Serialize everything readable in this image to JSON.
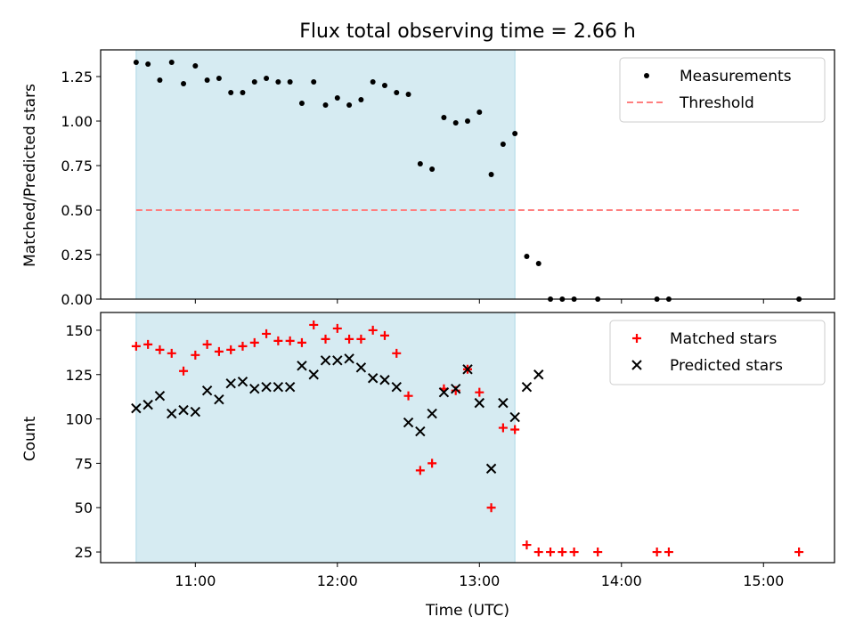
{
  "title": "Flux total observing time = 2.66 h",
  "colors": {
    "shade": "#add8e6",
    "threshold": "#ff7f7f",
    "measurement": "#000000",
    "matched": "#ff0000",
    "predicted": "#000000"
  },
  "chart_data": [
    {
      "type": "scatter",
      "ylabel": "Matched/Predicted stars",
      "xlim": [
        "10:20",
        "15:30"
      ],
      "ylim": [
        0,
        1.4
      ],
      "yticks": [
        "0.00",
        "0.25",
        "0.50",
        "0.75",
        "1.00",
        "1.25"
      ],
      "legend_position": "top-right",
      "shaded_span": [
        "10:35",
        "13:15"
      ],
      "threshold": {
        "label": "Threshold",
        "value": 0.5,
        "x": [
          "10:35",
          "15:15"
        ]
      },
      "series": [
        {
          "name": "Measurements",
          "marker": "dot",
          "x": [
            "10:35",
            "10:40",
            "10:45",
            "10:50",
            "10:55",
            "11:00",
            "11:05",
            "11:10",
            "11:15",
            "11:20",
            "11:25",
            "11:30",
            "11:35",
            "11:40",
            "11:45",
            "11:50",
            "11:55",
            "12:00",
            "12:05",
            "12:10",
            "12:15",
            "12:20",
            "12:25",
            "12:30",
            "12:35",
            "12:40",
            "12:45",
            "12:50",
            "12:55",
            "13:00",
            "13:05",
            "13:10",
            "13:15",
            "13:20",
            "13:25",
            "13:30",
            "13:35",
            "13:40",
            "13:50",
            "14:15",
            "14:20",
            "15:15"
          ],
          "y": [
            1.33,
            1.32,
            1.23,
            1.33,
            1.21,
            1.31,
            1.23,
            1.24,
            1.16,
            1.16,
            1.22,
            1.24,
            1.22,
            1.22,
            1.1,
            1.22,
            1.09,
            1.13,
            1.09,
            1.12,
            1.22,
            1.2,
            1.16,
            1.15,
            0.76,
            0.73,
            1.02,
            0.99,
            1.0,
            1.05,
            0.7,
            0.87,
            0.93,
            0.24,
            0.2,
            0,
            0,
            0,
            0,
            0,
            0,
            0
          ]
        }
      ]
    },
    {
      "type": "scatter",
      "xlabel": "Time (UTC)",
      "ylabel": "Count",
      "xlim": [
        "10:20",
        "15:30"
      ],
      "ylim": [
        19,
        160
      ],
      "yticks": [
        "25",
        "50",
        "75",
        "100",
        "125",
        "150"
      ],
      "xticks": [
        "11:00",
        "12:00",
        "13:00",
        "14:00",
        "15:00"
      ],
      "legend_position": "top-right",
      "shaded_span": [
        "10:35",
        "13:15"
      ],
      "series": [
        {
          "name": "Matched stars",
          "marker": "plus",
          "x": [
            "10:35",
            "10:40",
            "10:45",
            "10:50",
            "10:55",
            "11:00",
            "11:05",
            "11:10",
            "11:15",
            "11:20",
            "11:25",
            "11:30",
            "11:35",
            "11:40",
            "11:45",
            "11:50",
            "11:55",
            "12:00",
            "12:05",
            "12:10",
            "12:15",
            "12:20",
            "12:25",
            "12:30",
            "12:35",
            "12:40",
            "12:45",
            "12:50",
            "12:55",
            "13:00",
            "13:05",
            "13:10",
            "13:15",
            "13:20",
            "13:25",
            "13:30",
            "13:35",
            "13:40",
            "13:50",
            "14:15",
            "14:20",
            "15:15"
          ],
          "y": [
            141,
            142,
            139,
            137,
            127,
            136,
            142,
            138,
            139,
            141,
            143,
            148,
            144,
            144,
            143,
            153,
            145,
            151,
            145,
            145,
            150,
            147,
            137,
            113,
            71,
            75,
            117,
            116,
            128,
            115,
            50,
            95,
            94,
            29,
            25,
            25,
            25,
            25,
            25,
            25,
            25,
            25
          ]
        },
        {
          "name": "Predicted stars",
          "marker": "x",
          "x": [
            "10:35",
            "10:40",
            "10:45",
            "10:50",
            "10:55",
            "11:00",
            "11:05",
            "11:10",
            "11:15",
            "11:20",
            "11:25",
            "11:30",
            "11:35",
            "11:40",
            "11:45",
            "11:50",
            "11:55",
            "12:00",
            "12:05",
            "12:10",
            "12:15",
            "12:20",
            "12:25",
            "12:30",
            "12:35",
            "12:40",
            "12:45",
            "12:50",
            "12:55",
            "13:00",
            "13:05",
            "13:10",
            "13:15",
            "13:20",
            "13:25"
          ],
          "y": [
            106,
            108,
            113,
            103,
            105,
            104,
            116,
            111,
            120,
            121,
            117,
            118,
            118,
            118,
            130,
            125,
            133,
            133,
            134,
            129,
            123,
            122,
            118,
            98,
            93,
            103,
            115,
            117,
            128,
            109,
            72,
            109,
            101,
            118,
            125
          ]
        }
      ]
    }
  ]
}
